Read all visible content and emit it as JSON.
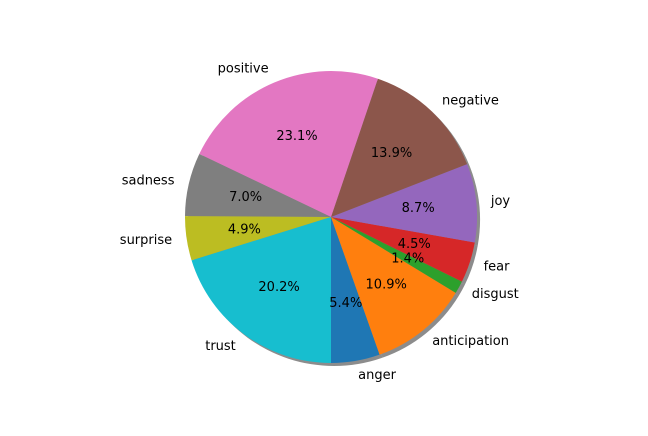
{
  "chart_data": {
    "type": "pie",
    "title": "",
    "start_angle_deg": 270,
    "direction": "counterclockwise",
    "shadow": true,
    "slices": [
      {
        "label": "anger",
        "value": 5.4,
        "pct_label": "5.4%",
        "color": "#1f77b4"
      },
      {
        "label": "anticipation",
        "value": 10.9,
        "pct_label": "10.9%",
        "color": "#ff7f0e"
      },
      {
        "label": "disgust",
        "value": 1.4,
        "pct_label": "1.4%",
        "color": "#2ca02c"
      },
      {
        "label": "fear",
        "value": 4.5,
        "pct_label": "4.5%",
        "color": "#d62728"
      },
      {
        "label": "joy",
        "value": 8.7,
        "pct_label": "8.7%",
        "color": "#9467bd"
      },
      {
        "label": "negative",
        "value": 13.9,
        "pct_label": "13.9%",
        "color": "#8c564b"
      },
      {
        "label": "positive",
        "value": 23.1,
        "pct_label": "23.1%",
        "color": "#e377c2"
      },
      {
        "label": "sadness",
        "value": 7.0,
        "pct_label": "7.0%",
        "color": "#7f7f7f"
      },
      {
        "label": "surprise",
        "value": 4.9,
        "pct_label": "4.9%",
        "color": "#bcbd22"
      },
      {
        "label": "trust",
        "value": 20.2,
        "pct_label": "20.2%",
        "color": "#17becf"
      }
    ]
  }
}
